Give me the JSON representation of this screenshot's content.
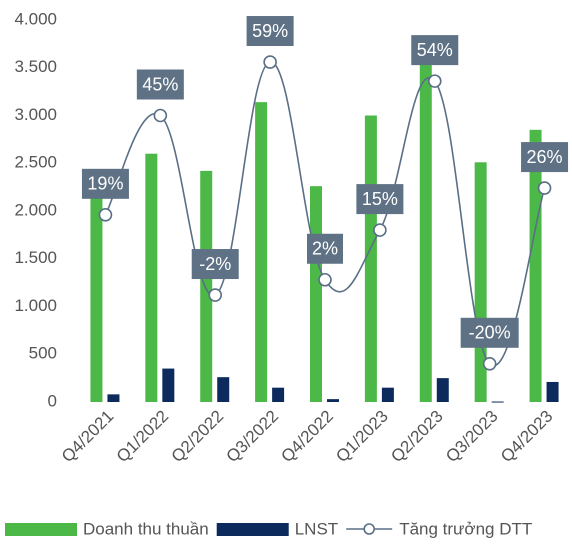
{
  "chart_data": {
    "type": "bar_line",
    "categories": [
      "Q4/2021",
      "Q1/2022",
      "Q2/2022",
      "Q3/2022",
      "Q4/2022",
      "Q1/2023",
      "Q2/2023",
      "Q3/2023",
      "Q4/2023"
    ],
    "series": [
      {
        "name": "Doanh thu thuần",
        "color": "#4cb848",
        "type": "bar",
        "values": [
          2150,
          2600,
          2420,
          3140,
          2260,
          3000,
          3650,
          2510,
          2850
        ]
      },
      {
        "name": "LNST",
        "color": "#0d2a5c",
        "type": "bar",
        "values": [
          80,
          350,
          260,
          150,
          30,
          150,
          250,
          5,
          210
        ]
      },
      {
        "name": "Tăng trưởng DTT",
        "color": "#5a6f86",
        "type": "line",
        "axis": "y2",
        "values": [
          19,
          45,
          -2,
          59,
          2,
          15,
          54,
          -20,
          26
        ],
        "value_labels": [
          "19%",
          "45%",
          "-2%",
          "59%",
          "2%",
          "15%",
          "54%",
          "-20%",
          "26%"
        ]
      }
    ],
    "ylim": [
      0,
      4000
    ],
    "yticks": [
      0,
      500,
      {
        "value": 1000,
        "label": "1.000"
      },
      {
        "value": 1500,
        "label": "1.500"
      },
      {
        "value": 2000,
        "label": "2.000"
      },
      {
        "value": 2500,
        "label": "2.500"
      },
      {
        "value": 3000,
        "label": "3.000"
      },
      {
        "value": 3500,
        "label": "3.500"
      },
      {
        "value": 4000,
        "label": "4.000"
      }
    ],
    "y2lim": [
      -30,
      70
    ],
    "label_box_color": "#5f7285",
    "legend": "bottom"
  }
}
